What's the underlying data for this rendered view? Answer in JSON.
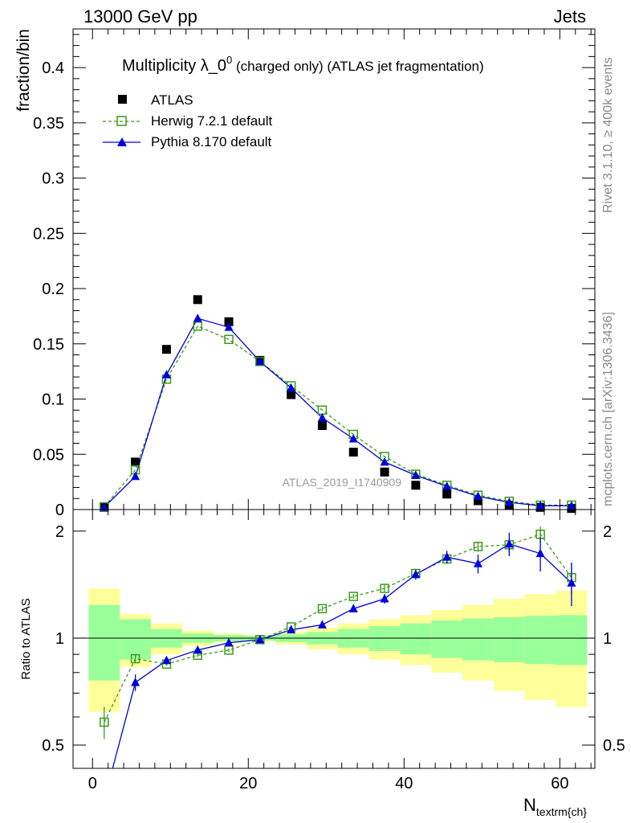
{
  "header": {
    "left": "13000 GeV pp",
    "right": "Jets"
  },
  "side_text": {
    "rivet": "Rivet 3.1.10, ≥ 400k events",
    "mcplots": "mcplots.cern.ch [arXiv:1306.3436]"
  },
  "watermark": "ATLAS_2019_I1740909",
  "chart_data": {
    "type": "scatter",
    "title_main": "Multiplicity λ_0",
    "title_sup": "0",
    "title_rest": " (charged only) (ATLAS jet fragmentation)",
    "xlabel": "N",
    "xlabel_sub": "textrm{ch}",
    "ylabel_top": "fraction/bin",
    "ylabel_bottom": "Ratio to ATLAS",
    "xlim": [
      -2.5,
      64.5
    ],
    "ylim_top": [
      0,
      0.435
    ],
    "ylim_bottom": [
      0.43,
      2.3
    ],
    "x_ticks": [
      "0",
      "20",
      "40",
      "60"
    ],
    "y_ticks_top": [
      "0",
      "0.05",
      "0.1",
      "0.15",
      "0.2",
      "0.25",
      "0.3",
      "0.35",
      "0.4"
    ],
    "y_ticks_bottom": [
      "0.5",
      "1",
      "2"
    ],
    "legend": {
      "atlas": "ATLAS",
      "herwig": "Herwig 7.2.1 default",
      "pythia": "Pythia 8.170 default"
    },
    "colors": {
      "atlas": "#000000",
      "herwig": "#3a9a1a",
      "pythia": "#0000dd",
      "band_inner": "#99ff99",
      "band_outer": "#ffff99"
    },
    "bins": [
      {
        "lo": -0.5,
        "hi": 3.5,
        "x": 1.5
      },
      {
        "lo": 3.5,
        "hi": 7.5,
        "x": 5.5
      },
      {
        "lo": 7.5,
        "hi": 11.5,
        "x": 9.5
      },
      {
        "lo": 11.5,
        "hi": 15.5,
        "x": 13.5
      },
      {
        "lo": 15.5,
        "hi": 19.5,
        "x": 17.5
      },
      {
        "lo": 19.5,
        "hi": 23.5,
        "x": 21.5
      },
      {
        "lo": 23.5,
        "hi": 27.5,
        "x": 25.5
      },
      {
        "lo": 27.5,
        "hi": 31.5,
        "x": 29.5
      },
      {
        "lo": 31.5,
        "hi": 35.5,
        "x": 33.5
      },
      {
        "lo": 35.5,
        "hi": 39.5,
        "x": 37.5
      },
      {
        "lo": 39.5,
        "hi": 43.5,
        "x": 41.5
      },
      {
        "lo": 43.5,
        "hi": 47.5,
        "x": 45.5
      },
      {
        "lo": 47.5,
        "hi": 51.5,
        "x": 49.5
      },
      {
        "lo": 51.5,
        "hi": 55.5,
        "x": 53.5
      },
      {
        "lo": 55.5,
        "hi": 59.5,
        "x": 57.5
      },
      {
        "lo": 59.5,
        "hi": 63.5,
        "x": 61.5
      }
    ],
    "atlas": [
      0.002,
      0.043,
      0.145,
      0.19,
      0.17,
      0.135,
      0.104,
      0.076,
      0.052,
      0.034,
      0.022,
      0.014,
      0.008,
      0.004,
      0.002,
      0.001
    ],
    "herwig": [
      0.0025,
      0.036,
      0.118,
      0.166,
      0.154,
      0.134,
      0.112,
      0.09,
      0.068,
      0.048,
      0.032,
      0.022,
      0.013,
      0.0075,
      0.004,
      0.004
    ],
    "pythia": [
      0.0021,
      0.03,
      0.122,
      0.173,
      0.165,
      0.134,
      0.11,
      0.083,
      0.064,
      0.043,
      0.031,
      0.021,
      0.012,
      0.0065,
      0.0034,
      0.0034
    ],
    "ratio_herwig": [
      0.58,
      0.875,
      0.845,
      0.895,
      0.925,
      0.99,
      1.075,
      1.21,
      1.31,
      1.38,
      1.52,
      1.67,
      1.81,
      1.83,
      1.96,
      1.48
    ],
    "ratio_herwig_err": [
      0.06,
      0.02,
      0.01,
      0.01,
      0.01,
      0.01,
      0.01,
      0.02,
      0.02,
      0.03,
      0.04,
      0.05,
      0.06,
      0.08,
      0.1,
      0.15
    ],
    "ratio_pythia": [
      0.35,
      0.75,
      0.865,
      0.925,
      0.97,
      0.99,
      1.055,
      1.09,
      1.21,
      1.29,
      1.51,
      1.69,
      1.62,
      1.84,
      1.73,
      1.43
    ],
    "ratio_pythia_err": [
      0.06,
      0.04,
      0.01,
      0.01,
      0.01,
      0.01,
      0.01,
      0.02,
      0.02,
      0.04,
      0.05,
      0.07,
      0.1,
      0.14,
      0.19,
      0.2
    ],
    "band_inner": [
      0.24,
      0.13,
      0.06,
      0.03,
      0.02,
      0.015,
      0.025,
      0.04,
      0.06,
      0.08,
      0.1,
      0.12,
      0.135,
      0.145,
      0.155,
      0.16
    ],
    "band_outer": [
      0.38,
      0.17,
      0.1,
      0.05,
      0.03,
      0.02,
      0.04,
      0.07,
      0.1,
      0.13,
      0.16,
      0.2,
      0.24,
      0.29,
      0.33,
      0.36
    ]
  }
}
